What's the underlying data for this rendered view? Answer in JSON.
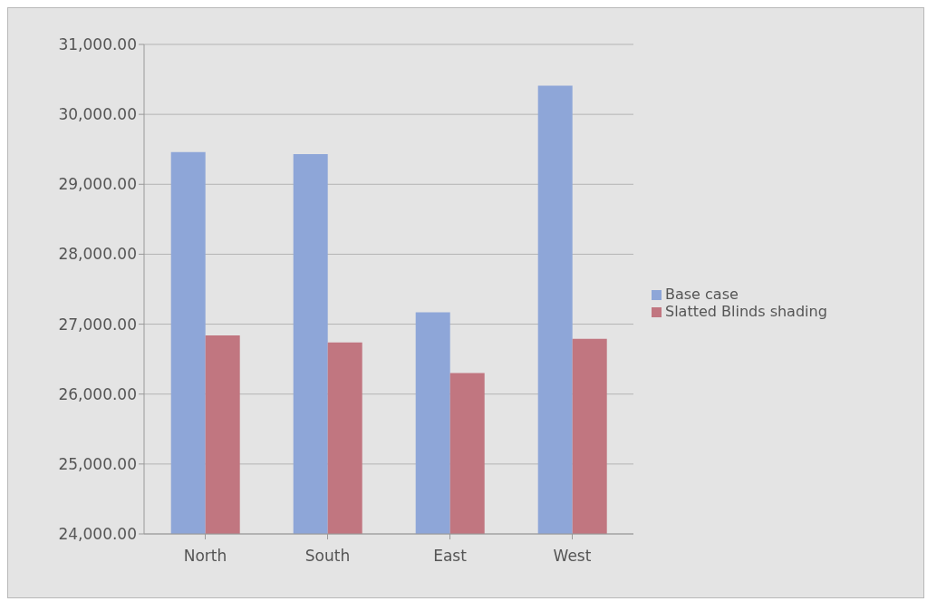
{
  "chart_data": {
    "type": "bar",
    "categories": [
      "North",
      "South",
      "East",
      "West"
    ],
    "series": [
      {
        "name": "Base case",
        "color": "#8ea6d8",
        "values": [
          29460,
          29430,
          27170,
          30410
        ]
      },
      {
        "name": "Slatted Blinds shading",
        "color": "#c17680",
        "values": [
          26840,
          26740,
          26300,
          26790
        ]
      }
    ],
    "ylim": [
      24000,
      31000
    ],
    "yticks": [
      {
        "value": 24000,
        "label": "24,000.00"
      },
      {
        "value": 25000,
        "label": "25,000.00"
      },
      {
        "value": 26000,
        "label": "26,000.00"
      },
      {
        "value": 27000,
        "label": "27,000.00"
      },
      {
        "value": 28000,
        "label": "28,000.00"
      },
      {
        "value": 29000,
        "label": "29,000.00"
      },
      {
        "value": 30000,
        "label": "30,000.00"
      },
      {
        "value": 31000,
        "label": "31,000.00"
      }
    ],
    "grid": "y",
    "legend": "right"
  }
}
